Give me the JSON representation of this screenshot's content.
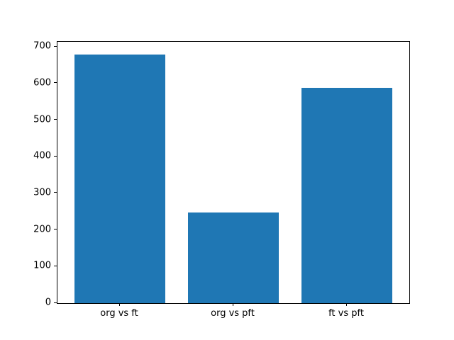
{
  "chart_data": {
    "type": "bar",
    "categories": [
      "org vs ft",
      "org vs pft",
      "ft vs pft"
    ],
    "values": [
      680,
      248,
      588
    ],
    "title": "",
    "xlabel": "",
    "ylabel": "",
    "yticks": [
      0,
      100,
      200,
      300,
      400,
      500,
      600,
      700
    ],
    "ylim": [
      0,
      714
    ],
    "xlim": [
      -0.55,
      2.55
    ],
    "bar_width": 0.8,
    "bar_color": "#1f77b4",
    "grid": false,
    "legend": "none"
  }
}
